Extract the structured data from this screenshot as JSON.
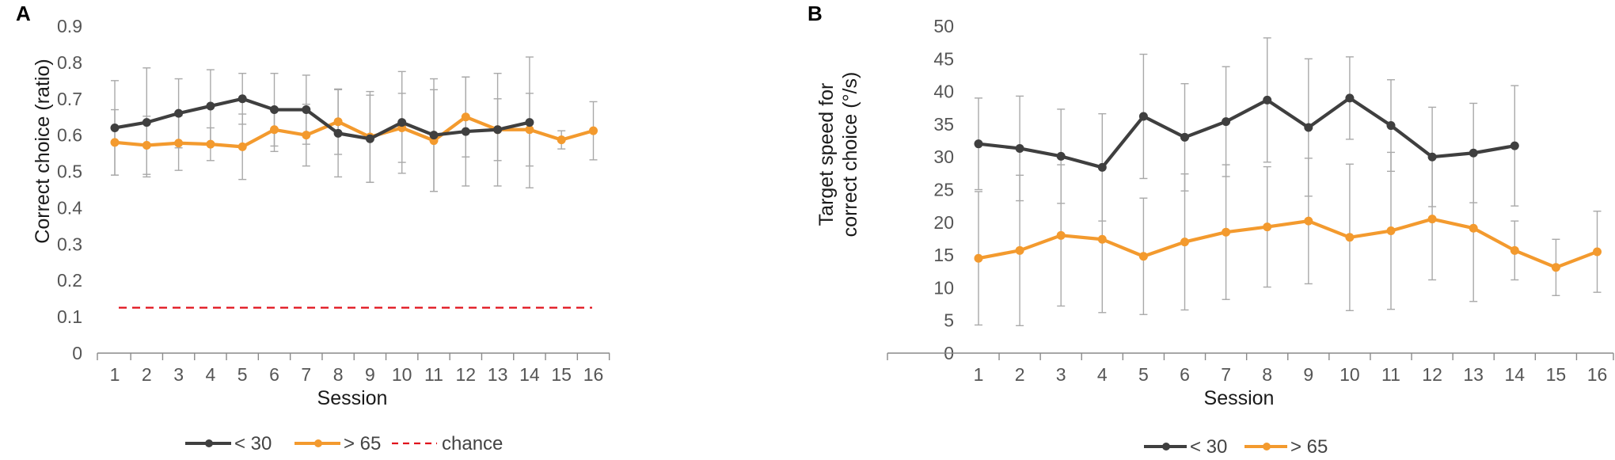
{
  "colors": {
    "young": "#3f3f3f",
    "old": "#f39a2e",
    "chance": "#e0121b",
    "error": "#a9a9a9"
  },
  "chart_data": [
    {
      "panel": "A",
      "type": "line",
      "xlabel": "Session",
      "ylabel": "Correct choice (ratio)",
      "categories": [
        "1",
        "2",
        "3",
        "4",
        "5",
        "6",
        "7",
        "8",
        "9",
        "10",
        "11",
        "12",
        "13",
        "14",
        "15",
        "16"
      ],
      "yticks": [
        "0",
        "0.1",
        "0.2",
        "0.3",
        "0.4",
        "0.5",
        "0.6",
        "0.7",
        "0.8",
        "0.9"
      ],
      "ylim": [
        0,
        0.9
      ],
      "series": [
        {
          "name": "< 30",
          "color_key": "young",
          "values": [
            0.62,
            0.635,
            0.66,
            0.68,
            0.7,
            0.67,
            0.67,
            0.605,
            0.59,
            0.635,
            0.6,
            0.61,
            0.615,
            0.635,
            null,
            null
          ],
          "errors": [
            0.13,
            0.15,
            0.095,
            0.1,
            0.07,
            0.1,
            0.095,
            0.12,
            0.12,
            0.14,
            0.155,
            0.15,
            0.155,
            0.18,
            null,
            null
          ]
        },
        {
          "name": "> 65",
          "color_key": "old",
          "values": [
            0.58,
            0.572,
            0.578,
            0.575,
            0.568,
            0.615,
            0.6,
            0.637,
            0.595,
            0.62,
            0.585,
            0.65,
            0.615,
            0.615,
            0.587,
            0.612
          ],
          "errors": [
            0.09,
            0.08,
            0.075,
            0.045,
            0.09,
            0.06,
            0.085,
            0.09,
            0.125,
            0.095,
            0.14,
            0.11,
            0.085,
            0.1,
            0.025,
            0.08
          ]
        }
      ],
      "reference_line": {
        "name": "chance",
        "value": 0.125,
        "color_key": "chance"
      },
      "legend": {
        "position": "bottom",
        "entries": [
          "< 30",
          "> 65",
          "chance"
        ]
      }
    },
    {
      "panel": "B",
      "type": "line",
      "xlabel": "Session",
      "ylabel_line1": "Target speed for",
      "ylabel_line2": "correct choice (°/s)",
      "categories": [
        "1",
        "2",
        "3",
        "4",
        "5",
        "6",
        "7",
        "8",
        "9",
        "10",
        "11",
        "12",
        "13",
        "14",
        "15",
        "16"
      ],
      "yticks": [
        "0",
        "5",
        "10",
        "15",
        "20",
        "25",
        "30",
        "35",
        "40",
        "45",
        "50"
      ],
      "ylim": [
        0,
        50
      ],
      "series": [
        {
          "name": "< 30",
          "color_key": "young",
          "values": [
            32,
            31.3,
            30.1,
            28.4,
            36.2,
            33,
            35.4,
            38.7,
            34.5,
            39,
            34.8,
            30,
            30.6,
            31.7,
            null,
            null
          ],
          "errors": [
            7,
            8,
            7.2,
            8.2,
            9.5,
            8.2,
            8.4,
            9.5,
            10.5,
            6.3,
            7,
            7.6,
            7.6,
            9.2,
            null,
            null
          ]
        },
        {
          "name": "> 65",
          "color_key": "old",
          "values": [
            14.5,
            15.7,
            18,
            17.4,
            14.8,
            17,
            18.5,
            19.3,
            20.2,
            17.7,
            18.7,
            20.5,
            19.1,
            15.7,
            13.1,
            15.5
          ],
          "errors": [
            10.2,
            11.5,
            10.8,
            11.2,
            8.9,
            10.4,
            10.3,
            9.2,
            9.6,
            11.2,
            12,
            9.3,
            11.2,
            4.5,
            4.3,
            6.2
          ]
        }
      ],
      "legend": {
        "position": "bottom",
        "entries": [
          "< 30",
          "> 65"
        ]
      }
    }
  ]
}
